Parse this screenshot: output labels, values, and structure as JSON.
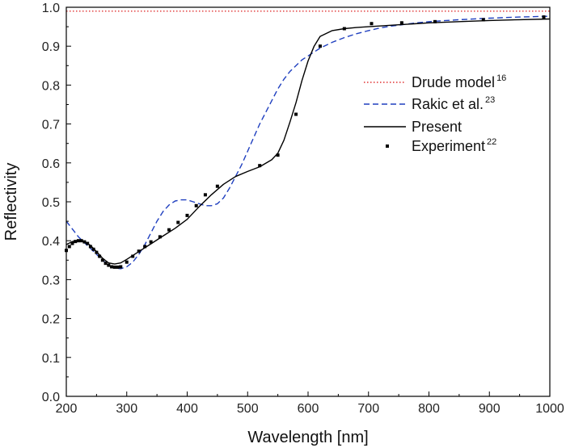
{
  "chart_data": {
    "type": "line",
    "xlabel": "Wavelength [nm]",
    "ylabel": "Reflectivity",
    "xlim": [
      200,
      1000
    ],
    "ylim": [
      0.0,
      1.0
    ],
    "xticks": [
      200,
      300,
      400,
      500,
      600,
      700,
      800,
      900,
      1000
    ],
    "xtick_labels": [
      "200",
      "300",
      "400",
      "500",
      "600",
      "700",
      "800",
      "900",
      "1000"
    ],
    "yticks": [
      0.0,
      0.1,
      0.2,
      0.3,
      0.4,
      0.5,
      0.6,
      0.7,
      0.8,
      0.9,
      1.0
    ],
    "ytick_labels": [
      "0.0",
      "0.1",
      "0.2",
      "0.3",
      "0.4",
      "0.5",
      "0.6",
      "0.7",
      "0.8",
      "0.9",
      "1.0"
    ],
    "grid": false,
    "legend_position": "right",
    "legend": [
      {
        "name": "Drude model",
        "sup": "16"
      },
      {
        "name": "Rakic et al.",
        "sup": "23"
      },
      {
        "name": "Present",
        "sup": ""
      },
      {
        "name": "Experiment",
        "sup": "22"
      }
    ],
    "series": [
      {
        "style": "dotted",
        "color": "#e03030",
        "x": [
          200,
          300,
          400,
          500,
          600,
          700,
          800,
          900,
          1000
        ],
        "y": [
          0.99,
          0.99,
          0.99,
          0.99,
          0.99,
          0.99,
          0.99,
          0.99,
          0.99
        ]
      },
      {
        "style": "dashed",
        "color": "#1f3fbf",
        "x": [
          200,
          210,
          220,
          230,
          240,
          250,
          260,
          270,
          280,
          290,
          300,
          310,
          320,
          330,
          340,
          350,
          360,
          370,
          380,
          390,
          400,
          410,
          420,
          430,
          440,
          450,
          460,
          470,
          480,
          490,
          500,
          510,
          520,
          530,
          540,
          550,
          560,
          570,
          580,
          590,
          600,
          610,
          620,
          640,
          660,
          680,
          700,
          720,
          740,
          760,
          780,
          800,
          850,
          900,
          950,
          1000
        ],
        "y": [
          0.45,
          0.43,
          0.41,
          0.395,
          0.38,
          0.365,
          0.35,
          0.337,
          0.33,
          0.328,
          0.333,
          0.345,
          0.365,
          0.39,
          0.42,
          0.45,
          0.475,
          0.492,
          0.502,
          0.505,
          0.505,
          0.5,
          0.495,
          0.49,
          0.49,
          0.495,
          0.51,
          0.535,
          0.565,
          0.595,
          0.63,
          0.665,
          0.7,
          0.73,
          0.76,
          0.79,
          0.815,
          0.835,
          0.85,
          0.865,
          0.875,
          0.885,
          0.895,
          0.91,
          0.922,
          0.932,
          0.94,
          0.947,
          0.952,
          0.956,
          0.96,
          0.963,
          0.968,
          0.972,
          0.975,
          0.977
        ]
      },
      {
        "style": "solid",
        "color": "#000000",
        "x": [
          200,
          210,
          220,
          230,
          240,
          250,
          260,
          270,
          280,
          290,
          300,
          320,
          340,
          360,
          380,
          400,
          420,
          440,
          460,
          480,
          500,
          520,
          540,
          550,
          560,
          570,
          580,
          590,
          600,
          610,
          620,
          640,
          660,
          680,
          700,
          750,
          800,
          850,
          900,
          950,
          1000
        ],
        "y": [
          0.39,
          0.398,
          0.4,
          0.398,
          0.388,
          0.372,
          0.355,
          0.343,
          0.34,
          0.343,
          0.352,
          0.372,
          0.392,
          0.412,
          0.432,
          0.455,
          0.488,
          0.518,
          0.545,
          0.565,
          0.578,
          0.59,
          0.608,
          0.625,
          0.658,
          0.705,
          0.755,
          0.812,
          0.862,
          0.9,
          0.925,
          0.94,
          0.945,
          0.948,
          0.95,
          0.955,
          0.96,
          0.963,
          0.966,
          0.968,
          0.97
        ]
      },
      {
        "style": "markers",
        "color": "#000000",
        "x": [
          200,
          205,
          210,
          215,
          220,
          225,
          230,
          235,
          240,
          245,
          250,
          255,
          260,
          265,
          270,
          275,
          280,
          285,
          290,
          300,
          310,
          320,
          330,
          340,
          355,
          370,
          385,
          400,
          415,
          430,
          450,
          520,
          550,
          580,
          620,
          660,
          705,
          755,
          810,
          890,
          990
        ],
        "y": [
          0.375,
          0.385,
          0.393,
          0.398,
          0.4,
          0.4,
          0.397,
          0.393,
          0.385,
          0.378,
          0.37,
          0.36,
          0.35,
          0.342,
          0.337,
          0.333,
          0.332,
          0.332,
          0.333,
          0.345,
          0.36,
          0.373,
          0.385,
          0.397,
          0.41,
          0.428,
          0.447,
          0.465,
          0.49,
          0.518,
          0.54,
          0.593,
          0.62,
          0.725,
          0.9,
          0.945,
          0.958,
          0.96,
          0.963,
          0.968,
          0.975
        ]
      }
    ]
  }
}
